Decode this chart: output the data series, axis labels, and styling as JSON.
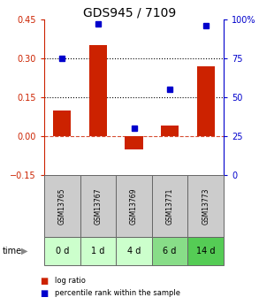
{
  "title": "GDS945 / 7109",
  "samples": [
    "GSM13765",
    "GSM13767",
    "GSM13769",
    "GSM13771",
    "GSM13773"
  ],
  "time_labels": [
    "0 d",
    "1 d",
    "4 d",
    "6 d",
    "14 d"
  ],
  "log_ratio": [
    0.1,
    0.35,
    -0.05,
    0.04,
    0.27
  ],
  "percentile_rank": [
    75,
    97,
    30,
    55,
    96
  ],
  "bar_color": "#cc2200",
  "dot_color": "#0000cc",
  "ylim_left": [
    -0.15,
    0.45
  ],
  "ylim_right": [
    0,
    100
  ],
  "yticks_left": [
    -0.15,
    0.0,
    0.15,
    0.3,
    0.45
  ],
  "yticks_right": [
    0,
    25,
    50,
    75,
    100
  ],
  "hline_dashed": 0.0,
  "hline_dotted": [
    0.15,
    0.3
  ],
  "sample_bg_color": "#cccccc",
  "time_colors": [
    "#ccffcc",
    "#ccffcc",
    "#ccffcc",
    "#88dd88",
    "#55cc55"
  ],
  "legend_bar_color": "#cc2200",
  "legend_dot_color": "#0000cc",
  "title_fontsize": 10,
  "tick_fontsize": 7,
  "sample_fontsize": 5.5,
  "time_fontsize": 7,
  "bar_width": 0.5
}
